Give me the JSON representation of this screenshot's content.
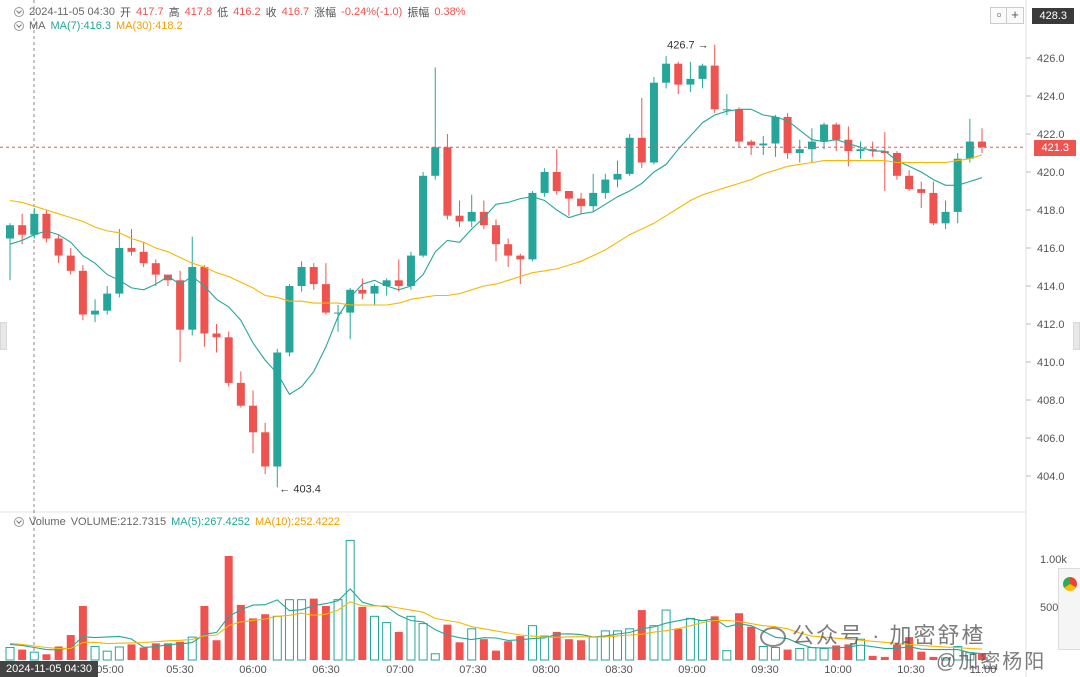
{
  "header": {
    "datetime": "2024-11-05 04:30",
    "open_label": "开",
    "open": "417.7",
    "high_label": "高",
    "high": "417.8",
    "low_label": "低",
    "low": "416.2",
    "close_label": "收",
    "close": "416.7",
    "change_label": "涨幅",
    "change": "-0.24%(-1.0)",
    "amp_label": "振幅",
    "amp": "0.38%",
    "ma_label": "MA",
    "ma7": "MA(7):416.3",
    "ma30": "MA(30):418.2",
    "top_price": "428.3",
    "plus_label": "+"
  },
  "volume_legend": {
    "label": "Volume",
    "volume": "VOLUME:212.7315",
    "ma5": "MA(5):267.4252",
    "ma10": "MA(10):252.4222"
  },
  "current_price_tag": "421.3",
  "bottom_datetime_tag": "2024-11-05 04:30",
  "watermark": "公众号 · 加密舒楂",
  "watermark2": "@加密杨阳",
  "colors": {
    "up": "#26a69a",
    "down": "#ef5350",
    "ma_fast": "#26a69a",
    "ma_slow": "#f5b800",
    "price_line": "#ef5350"
  },
  "chart_data": {
    "type": "candlestick",
    "price_axis": {
      "min": 403,
      "max": 427.5,
      "ticks": [
        404.0,
        406.0,
        408.0,
        410.0,
        412.0,
        414.0,
        416.0,
        418.0,
        420.0,
        422.0,
        424.0,
        426.0
      ]
    },
    "price_tick_labels": [
      "404.0",
      "406.0",
      "408.0",
      "410.0",
      "412.0",
      "414.0",
      "416.0",
      "418.0",
      "420.0",
      "422.0",
      "424.0",
      "426.0"
    ],
    "volume_axis_labels": [
      "1.00k",
      "500"
    ],
    "volume_max": 1250,
    "time_labels": [
      "05:00",
      "05:30",
      "06:00",
      "06:30",
      "07:00",
      "07:30",
      "08:00",
      "08:30",
      "09:00",
      "09:30",
      "10:00",
      "10:30",
      "11:00"
    ],
    "high_annotation": "426.7",
    "low_annotation": "403.4",
    "candles": [
      [
        416.5,
        417.2,
        414.3,
        417.3
      ],
      [
        417.2,
        416.7,
        416.2,
        417.8
      ],
      [
        416.7,
        417.8,
        416.5,
        418.1
      ],
      [
        417.8,
        416.5,
        416.3,
        418.0
      ],
      [
        416.5,
        415.6,
        415.2,
        416.7
      ],
      [
        415.6,
        414.8,
        414.6,
        416.0
      ],
      [
        414.8,
        412.5,
        412.2,
        415.1
      ],
      [
        412.5,
        412.7,
        412.1,
        413.3
      ],
      [
        412.7,
        413.6,
        412.5,
        414.0
      ],
      [
        413.6,
        416.0,
        413.4,
        417.0
      ],
      [
        416.0,
        415.8,
        415.6,
        417.0
      ],
      [
        415.8,
        415.2,
        415.0,
        416.3
      ],
      [
        415.2,
        414.6,
        414.0,
        415.4
      ],
      [
        414.6,
        414.3,
        414.0,
        414.6
      ],
      [
        414.3,
        411.7,
        410.0,
        414.8
      ],
      [
        411.7,
        415.0,
        411.4,
        416.6
      ],
      [
        415.0,
        411.5,
        410.8,
        415.1
      ],
      [
        411.5,
        411.3,
        410.5,
        412.0
      ],
      [
        411.3,
        408.9,
        408.7,
        411.6
      ],
      [
        408.9,
        407.7,
        407.6,
        409.5
      ],
      [
        407.7,
        406.3,
        405.2,
        408.5
      ],
      [
        406.3,
        404.5,
        404.1,
        406.8
      ],
      [
        404.5,
        410.5,
        403.4,
        410.7
      ],
      [
        410.5,
        414.0,
        410.3,
        414.1
      ],
      [
        414.0,
        415.0,
        413.7,
        415.3
      ],
      [
        415.0,
        414.1,
        413.8,
        415.2
      ],
      [
        414.1,
        412.6,
        412.5,
        415.2
      ],
      [
        412.6,
        412.6,
        411.6,
        413.0
      ],
      [
        412.6,
        413.8,
        411.2,
        413.9
      ],
      [
        413.8,
        413.6,
        413.3,
        414.4
      ],
      [
        413.6,
        414.0,
        413.0,
        414.1
      ],
      [
        414.0,
        414.3,
        413.5,
        414.4
      ],
      [
        414.3,
        414.0,
        413.7,
        415.4
      ],
      [
        414.0,
        415.6,
        413.8,
        415.8
      ],
      [
        415.6,
        419.8,
        415.5,
        420.0
      ],
      [
        419.8,
        421.3,
        419.6,
        425.5
      ],
      [
        421.3,
        417.7,
        417.5,
        422.0
      ],
      [
        417.7,
        417.4,
        417.1,
        418.5
      ],
      [
        417.4,
        417.9,
        417.1,
        418.8
      ],
      [
        417.9,
        417.2,
        417.0,
        418.5
      ],
      [
        417.2,
        416.2,
        415.3,
        417.5
      ],
      [
        416.2,
        415.6,
        415.0,
        416.5
      ],
      [
        415.6,
        415.4,
        414.1,
        415.7
      ],
      [
        415.4,
        418.9,
        415.3,
        419.0
      ],
      [
        418.9,
        420.0,
        418.7,
        420.2
      ],
      [
        420.0,
        419.0,
        418.8,
        421.2
      ],
      [
        419.0,
        418.6,
        417.7,
        418.9
      ],
      [
        418.6,
        418.2,
        417.8,
        418.9
      ],
      [
        418.2,
        418.9,
        417.9,
        419.9
      ],
      [
        418.9,
        419.6,
        418.6,
        419.9
      ],
      [
        419.6,
        419.9,
        419.2,
        420.6
      ],
      [
        419.9,
        421.8,
        419.8,
        422.0
      ],
      [
        421.8,
        420.5,
        420.2,
        423.9
      ],
      [
        420.5,
        424.7,
        420.4,
        425.0
      ],
      [
        424.7,
        425.7,
        424.4,
        426.1
      ],
      [
        425.7,
        424.6,
        424.1,
        425.8
      ],
      [
        424.6,
        424.9,
        424.2,
        425.8
      ],
      [
        424.9,
        425.6,
        424.4,
        425.7
      ],
      [
        425.6,
        423.3,
        423.1,
        426.7
      ],
      [
        423.3,
        423.3,
        423.0,
        424.1
      ],
      [
        423.3,
        421.6,
        421.3,
        423.4
      ],
      [
        421.6,
        421.4,
        420.9,
        421.7
      ],
      [
        421.4,
        421.5,
        420.9,
        421.9
      ],
      [
        421.5,
        422.9,
        420.8,
        423.0
      ],
      [
        422.9,
        421.0,
        420.7,
        423.1
      ],
      [
        421.0,
        421.2,
        420.5,
        421.7
      ],
      [
        421.2,
        421.6,
        420.5,
        422.3
      ],
      [
        421.6,
        422.5,
        421.2,
        422.6
      ],
      [
        422.5,
        421.7,
        421.1,
        422.6
      ],
      [
        421.7,
        421.1,
        420.3,
        422.4
      ],
      [
        421.1,
        421.2,
        420.7,
        421.6
      ],
      [
        421.2,
        421.1,
        420.8,
        421.6
      ],
      [
        421.1,
        421.0,
        419.0,
        422.1
      ],
      [
        421.0,
        419.8,
        419.6,
        421.1
      ],
      [
        419.8,
        419.1,
        419.0,
        420.1
      ],
      [
        419.1,
        418.9,
        418.1,
        419.5
      ],
      [
        418.9,
        417.3,
        417.2,
        419.5
      ],
      [
        417.3,
        417.9,
        417.0,
        418.5
      ],
      [
        417.9,
        420.7,
        417.3,
        421.0
      ],
      [
        420.7,
        421.6,
        420.5,
        422.8
      ],
      [
        421.6,
        421.3,
        421.0,
        422.3
      ]
    ],
    "volumes": [
      120,
      100,
      75,
      55,
      130,
      240,
      520,
      130,
      85,
      125,
      150,
      120,
      160,
      160,
      175,
      220,
      520,
      190,
      1000,
      530,
      400,
      440,
      420,
      580,
      580,
      590,
      520,
      580,
      1150,
      510,
      420,
      360,
      270,
      420,
      350,
      60,
      340,
      170,
      300,
      200,
      90,
      180,
      230,
      330,
      230,
      270,
      200,
      190,
      220,
      280,
      280,
      300,
      480,
      330,
      480,
      300,
      400,
      380,
      420,
      90,
      450,
      320,
      130,
      120,
      100,
      110,
      120,
      110,
      140,
      150,
      200,
      40,
      30,
      150,
      220,
      80,
      30,
      20,
      130,
      70,
      60
    ],
    "ma_fast_values": [
      416.2,
      416.4,
      416.7,
      416.9,
      416.7,
      416.3,
      415.6,
      415.2,
      414.6,
      414.3,
      413.9,
      413.8,
      414.1,
      414.5,
      414.1,
      414.5,
      414.0,
      413.3,
      412.9,
      412.2,
      411.0,
      410.1,
      409.4,
      408.3,
      408.7,
      409.5,
      410.8,
      412.4,
      413.4,
      414.1,
      414.3,
      414.0,
      413.8,
      414.0,
      414.6,
      415.8,
      416.4,
      416.3,
      417.0,
      417.6,
      418.3,
      418.4,
      418.6,
      418.7,
      418.5,
      418.0,
      417.6,
      417.8,
      417.9,
      418.3,
      418.7,
      419.0,
      419.4,
      420.0,
      420.4,
      421.2,
      421.9,
      422.6,
      423.0,
      423.2,
      423.3,
      423.3,
      423.0,
      422.9,
      422.7,
      422.2,
      421.7,
      421.6,
      421.7,
      421.5,
      421.3,
      421.1,
      421.1,
      420.6,
      420.3,
      420.0,
      419.6,
      419.3,
      419.3,
      419.5,
      419.7
    ],
    "ma_slow_values": [
      418.5,
      418.4,
      418.2,
      418.0,
      417.8,
      417.6,
      417.4,
      417.1,
      416.9,
      416.8,
      416.5,
      416.3,
      416.0,
      415.8,
      415.5,
      415.2,
      415.0,
      414.7,
      414.5,
      414.2,
      413.9,
      413.5,
      413.4,
      413.2,
      413.2,
      413.1,
      413.1,
      413.1,
      413.0,
      413.0,
      413.0,
      413.0,
      413.1,
      413.3,
      413.4,
      413.5,
      413.5,
      413.6,
      413.8,
      414.0,
      414.1,
      414.3,
      414.5,
      414.7,
      414.8,
      414.9,
      415.1,
      415.3,
      415.6,
      415.9,
      416.3,
      416.7,
      417.0,
      417.3,
      417.7,
      418.1,
      418.5,
      418.8,
      419.0,
      419.2,
      419.4,
      419.6,
      419.9,
      420.1,
      420.3,
      420.4,
      420.5,
      420.6,
      420.6,
      420.6,
      420.6,
      420.6,
      420.6,
      420.5,
      420.5,
      420.5,
      420.5,
      420.5,
      420.6,
      420.7,
      420.9
    ],
    "vol_ma5_values": [
      150,
      140,
      120,
      100,
      96,
      120,
      224,
      215,
      222,
      227,
      202,
      122,
      128,
      148,
      155,
      167,
      247,
      265,
      417,
      484,
      528,
      532,
      578,
      474,
      484,
      522,
      542,
      570,
      684,
      556,
      524,
      512,
      430,
      380,
      366,
      290,
      240,
      214,
      196,
      214,
      212,
      188,
      194,
      206,
      212,
      248,
      252,
      244,
      222,
      232,
      250,
      264,
      300,
      318,
      354,
      378,
      398,
      378,
      396,
      318,
      348,
      330,
      276,
      218,
      206,
      154,
      118,
      116,
      116,
      124,
      144,
      128,
      112,
      112,
      128,
      104,
      100,
      100,
      100,
      70,
      62
    ],
    "vol_ma10_values": [
      160,
      150,
      135,
      120,
      110,
      112,
      168,
      170,
      158,
      162,
      164,
      168,
      176,
      185,
      189,
      197,
      234,
      240,
      331,
      366,
      381,
      394,
      420,
      430,
      450,
      430,
      440,
      480,
      560,
      520,
      520,
      520,
      500,
      480,
      460,
      400,
      380,
      360,
      320,
      300,
      280,
      260,
      240,
      230,
      220,
      218,
      222,
      224,
      220,
      222,
      232,
      240,
      248,
      268,
      282,
      302,
      330,
      360,
      380,
      380,
      370,
      350,
      330,
      320,
      300,
      260,
      230,
      220,
      210,
      200,
      190,
      180,
      170,
      160,
      150,
      140,
      132,
      124,
      120,
      110,
      105
    ]
  }
}
